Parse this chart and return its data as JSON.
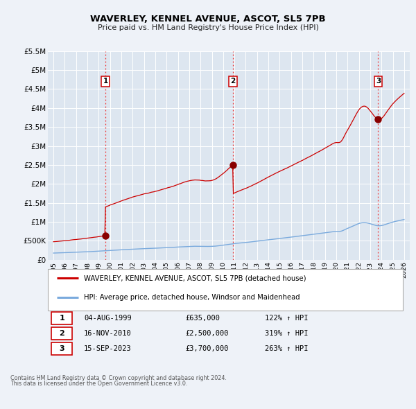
{
  "title": "WAVERLEY, KENNEL AVENUE, ASCOT, SL5 7PB",
  "subtitle": "Price paid vs. HM Land Registry's House Price Index (HPI)",
  "background_color": "#eef2f8",
  "plot_bg_color": "#dde6f0",
  "grid_color": "#ffffff",
  "xlim": [
    1994.5,
    2026.5
  ],
  "ylim": [
    0,
    5500000
  ],
  "yticks": [
    0,
    500000,
    1000000,
    1500000,
    2000000,
    2500000,
    3000000,
    3500000,
    4000000,
    4500000,
    5000000,
    5500000
  ],
  "ytick_labels": [
    "£0",
    "£500K",
    "£1M",
    "£1.5M",
    "£2M",
    "£2.5M",
    "£3M",
    "£3.5M",
    "£4M",
    "£4.5M",
    "£5M",
    "£5.5M"
  ],
  "xticks": [
    1995,
    1996,
    1997,
    1998,
    1999,
    2000,
    2001,
    2002,
    2003,
    2004,
    2005,
    2006,
    2007,
    2008,
    2009,
    2010,
    2011,
    2012,
    2013,
    2014,
    2015,
    2016,
    2017,
    2018,
    2019,
    2020,
    2021,
    2022,
    2023,
    2024,
    2025,
    2026
  ],
  "hpi_line_color": "#7aaadd",
  "price_line_color": "#cc0000",
  "sale_dot_color": "#880000",
  "vline_color": "#ee3333",
  "sales": [
    {
      "date": 1999.59,
      "price": 635000,
      "label": "1"
    },
    {
      "date": 2010.88,
      "price": 2500000,
      "label": "2"
    },
    {
      "date": 2023.71,
      "price": 3700000,
      "label": "3"
    }
  ],
  "sale_table": [
    {
      "num": "1",
      "date": "04-AUG-1999",
      "price": "£635,000",
      "hpi": "122% ↑ HPI"
    },
    {
      "num": "2",
      "date": "16-NOV-2010",
      "price": "£2,500,000",
      "hpi": "319% ↑ HPI"
    },
    {
      "num": "3",
      "date": "15-SEP-2023",
      "price": "£3,700,000",
      "hpi": "263% ↑ HPI"
    }
  ],
  "legend_line1": "WAVERLEY, KENNEL AVENUE, ASCOT, SL5 7PB (detached house)",
  "legend_line2": "HPI: Average price, detached house, Windsor and Maidenhead",
  "footer1": "Contains HM Land Registry data © Crown copyright and database right 2024.",
  "footer2": "This data is licensed under the Open Government Licence v3.0."
}
